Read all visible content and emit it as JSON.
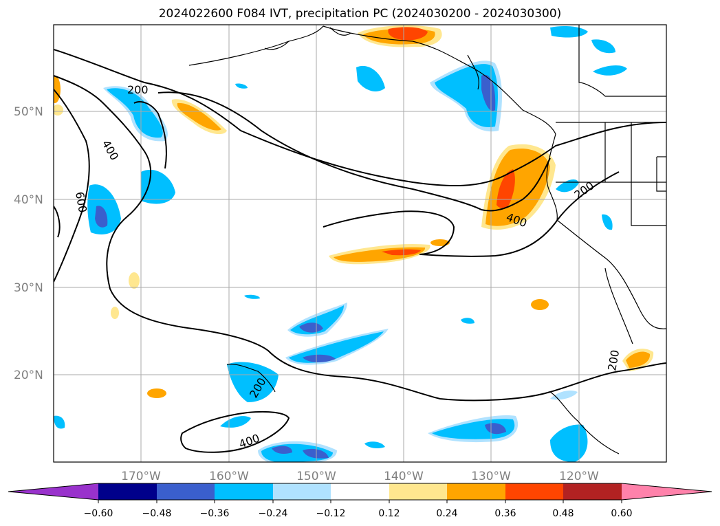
{
  "title": "2024022600 F084 IVT, precipitation PC (2024030200 - 2024030300)",
  "map": {
    "lat_labels": [
      "50°N",
      "40°N",
      "30°N",
      "20°N"
    ],
    "lon_labels": [
      "170°W",
      "160°W",
      "150°W",
      "140°W",
      "130°W",
      "120°W"
    ],
    "contour_labels": [
      "200",
      "400",
      "600",
      "400",
      "200",
      "200",
      "200",
      "400"
    ],
    "grid_color": "#aaaaaa",
    "contour_color": "#000000"
  },
  "colorbar": {
    "tick_labels": [
      "−0.60",
      "−0.48",
      "−0.36",
      "−0.24",
      "−0.12",
      "0.12",
      "0.24",
      "0.36",
      "0.48",
      "0.60"
    ],
    "colors": [
      "#9932cc",
      "#00008b",
      "#3a5fcd",
      "#00bfff",
      "#b0e2ff",
      "#ffffff",
      "#ffe78f",
      "#ffa500",
      "#ff4500",
      "#b22222",
      "#ff82ab"
    ]
  }
}
